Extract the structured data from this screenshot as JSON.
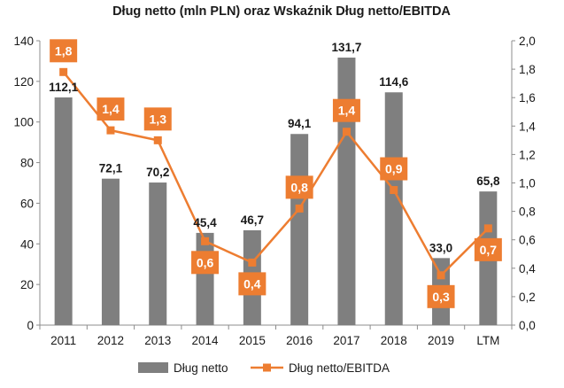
{
  "chart_data": {
    "type": "bar+line",
    "title": "Dług netto (mln PLN) oraz Wskaźnik Dług netto/EBITDA",
    "categories": [
      "2011",
      "2012",
      "2013",
      "2014",
      "2015",
      "2016",
      "2017",
      "2018",
      "2019",
      "LTM"
    ],
    "series": [
      {
        "name": "Dług netto",
        "kind": "bar",
        "axis": "left",
        "color": "#7f7f7f",
        "values": [
          112.1,
          72.1,
          70.2,
          45.4,
          46.7,
          94.1,
          131.7,
          114.6,
          33.0,
          65.8
        ],
        "labels": [
          "112,1",
          "72,1",
          "70,2",
          "45,4",
          "46,7",
          "94,1",
          "131,7",
          "114,6",
          "33,0",
          "65,8"
        ]
      },
      {
        "name": "Dług netto/EBITDA",
        "kind": "line",
        "axis": "right",
        "color": "#ed7d31",
        "values": [
          1.78,
          1.37,
          1.3,
          0.59,
          0.44,
          0.82,
          1.36,
          0.95,
          0.35,
          0.68
        ],
        "labels": [
          "1,8",
          "1,4",
          "1,3",
          "0,6",
          "0,4",
          "0,8",
          "1,4",
          "0,9",
          "0,3",
          "0,7"
        ],
        "label_position": [
          "above",
          "above",
          "above",
          "below",
          "below",
          "above",
          "above",
          "above",
          "below",
          "below"
        ]
      }
    ],
    "y_left": {
      "min": 0,
      "max": 140,
      "step": 20,
      "tick_labels": [
        "0",
        "20",
        "40",
        "60",
        "80",
        "100",
        "120",
        "140"
      ]
    },
    "y_right": {
      "min": 0,
      "max": 2.0,
      "step": 0.2,
      "tick_labels": [
        "0,0",
        "0,2",
        "0,4",
        "0,6",
        "0,8",
        "1,0",
        "1,2",
        "1,4",
        "1,6",
        "1,8",
        "2,0"
      ]
    },
    "grid": false,
    "legend_position": "bottom"
  }
}
